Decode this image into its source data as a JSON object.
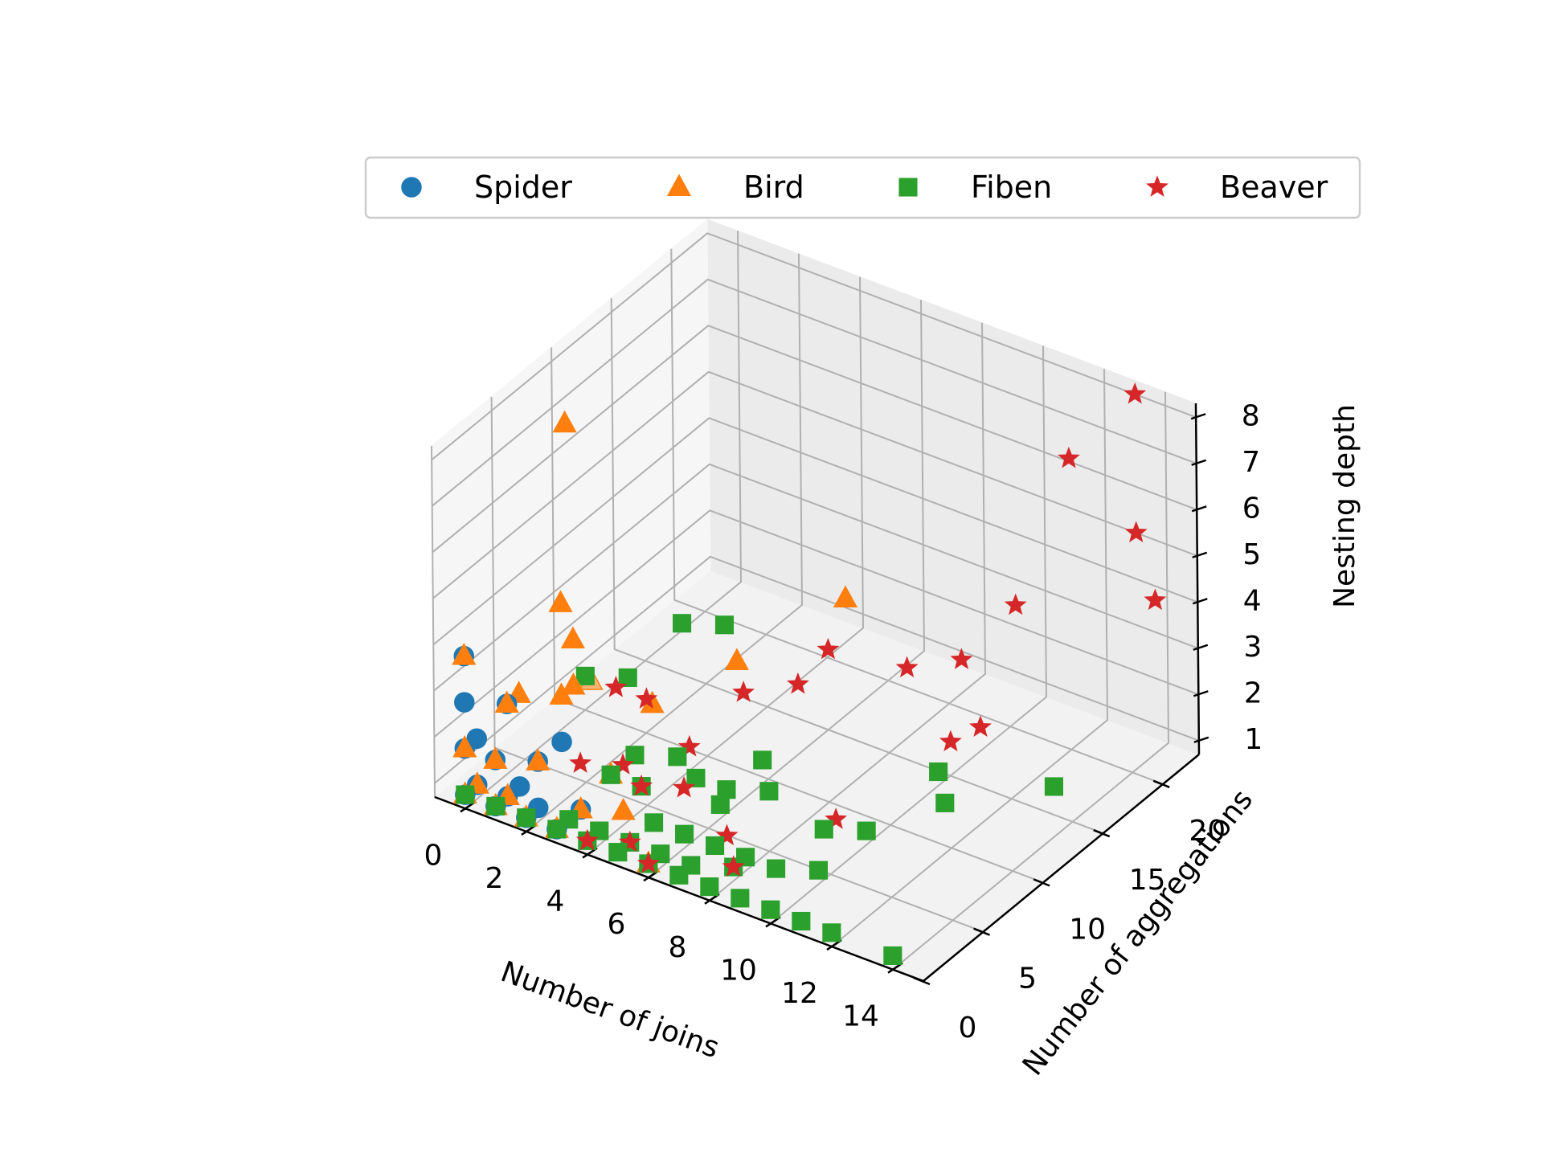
{
  "chart_data": {
    "type": "scatter3d",
    "title": "",
    "xlabel": "Number of joins",
    "ylabel": "Number of aggregations",
    "zlabel": "Nesting depth",
    "xlim": [
      -1,
      15
    ],
    "ylim": [
      0,
      23
    ],
    "zlim": [
      0.7,
      8.3
    ],
    "x_ticks": [
      "0",
      "2",
      "4",
      "6",
      "8",
      "10",
      "12",
      "14"
    ],
    "y_ticks": [
      "0",
      "5",
      "10",
      "15",
      "20"
    ],
    "z_ticks": [
      "1",
      "2",
      "3",
      "4",
      "5",
      "6",
      "7",
      "8"
    ],
    "legend": {
      "placement": "top",
      "columns": 4
    },
    "series": [
      {
        "name": "Spider",
        "marker": "circle",
        "color": "#1f77b4",
        "points": [
          [
            0,
            0,
            1
          ],
          [
            0,
            1,
            1
          ],
          [
            1,
            0,
            1
          ],
          [
            1,
            1,
            1
          ],
          [
            2,
            0,
            1
          ],
          [
            2,
            1,
            1
          ],
          [
            0,
            0,
            2
          ],
          [
            1,
            0,
            2
          ],
          [
            0,
            1,
            2
          ],
          [
            2,
            1,
            2
          ],
          [
            0,
            0,
            3
          ],
          [
            1,
            1,
            3
          ],
          [
            0,
            0,
            4
          ],
          [
            1,
            2,
            1
          ],
          [
            3,
            0,
            1
          ],
          [
            3,
            2,
            1
          ],
          [
            2,
            3,
            2
          ]
        ]
      },
      {
        "name": "Bird",
        "marker": "triangle",
        "color": "#ff7f0e",
        "points": [
          [
            0,
            0,
            1
          ],
          [
            1,
            0,
            1
          ],
          [
            0,
            1,
            1
          ],
          [
            2,
            0,
            1
          ],
          [
            1,
            1,
            1
          ],
          [
            3,
            0,
            1
          ],
          [
            0,
            0,
            2
          ],
          [
            1,
            0,
            2
          ],
          [
            2,
            1,
            2
          ],
          [
            1,
            1,
            3
          ],
          [
            0,
            0,
            4
          ],
          [
            2,
            3,
            3
          ],
          [
            2,
            4,
            4
          ],
          [
            2,
            3,
            5
          ],
          [
            1,
            6,
            8
          ],
          [
            1,
            8,
            2
          ],
          [
            3,
            8,
            2
          ],
          [
            4,
            3,
            1
          ],
          [
            1,
            2,
            3
          ],
          [
            5,
            10,
            3
          ],
          [
            4,
            2,
            2
          ],
          [
            2,
            4,
            3
          ],
          [
            3,
            2,
            1
          ],
          [
            6,
            0,
            1
          ],
          [
            7,
            14,
            4
          ]
        ]
      },
      {
        "name": "Fiben",
        "marker": "square",
        "color": "#2ca02c",
        "points": [
          [
            0,
            0,
            1
          ],
          [
            1,
            0,
            1
          ],
          [
            2,
            0,
            1
          ],
          [
            3,
            0,
            1
          ],
          [
            4,
            0,
            1
          ],
          [
            5,
            0,
            1
          ],
          [
            6,
            0,
            1
          ],
          [
            7,
            0,
            1
          ],
          [
            8,
            0,
            1
          ],
          [
            9,
            0,
            1
          ],
          [
            10,
            0,
            1
          ],
          [
            11,
            0,
            1
          ],
          [
            12,
            0,
            1
          ],
          [
            14,
            0,
            1
          ],
          [
            3,
            1,
            1
          ],
          [
            4,
            1,
            1
          ],
          [
            5,
            1,
            1
          ],
          [
            6,
            1,
            1
          ],
          [
            7,
            1,
            1
          ],
          [
            8,
            2,
            1
          ],
          [
            5,
            3,
            1
          ],
          [
            6,
            3,
            1
          ],
          [
            7,
            3,
            1
          ],
          [
            8,
            3,
            1
          ],
          [
            9,
            3,
            1
          ],
          [
            10,
            4,
            1
          ],
          [
            4,
            2,
            2
          ],
          [
            5,
            2,
            2
          ],
          [
            6,
            4,
            2
          ],
          [
            7,
            4,
            2
          ],
          [
            8,
            5,
            2
          ],
          [
            2,
            5,
            3
          ],
          [
            3,
            6,
            3
          ],
          [
            4,
            8,
            4
          ],
          [
            5,
            9,
            4
          ],
          [
            11,
            12,
            1
          ],
          [
            9,
            7,
            1
          ],
          [
            10,
            8,
            1
          ],
          [
            4,
            4,
            2
          ],
          [
            5,
            5,
            2
          ],
          [
            13,
            16,
            1
          ],
          [
            10,
            14,
            1
          ],
          [
            6,
            6,
            1
          ],
          [
            7,
            7,
            2
          ]
        ]
      },
      {
        "name": "Beaver",
        "marker": "star",
        "color": "#d62728",
        "points": [
          [
            4,
            0,
            1
          ],
          [
            5,
            1,
            1
          ],
          [
            6,
            0,
            1
          ],
          [
            8,
            2,
            1
          ],
          [
            7,
            4,
            1
          ],
          [
            3,
            2,
            2
          ],
          [
            4,
            3,
            2
          ],
          [
            5,
            2,
            2
          ],
          [
            6,
            3,
            2
          ],
          [
            3,
            5,
            3
          ],
          [
            4,
            5,
            3
          ],
          [
            6,
            8,
            3
          ],
          [
            7,
            10,
            3
          ],
          [
            9,
            14,
            3
          ],
          [
            10,
            16,
            3
          ],
          [
            11,
            15,
            2
          ],
          [
            12,
            10,
            3
          ],
          [
            8,
            10,
            4
          ],
          [
            11,
            18,
            4
          ],
          [
            14,
            22,
            4
          ],
          [
            13,
            23,
            5
          ],
          [
            12,
            20,
            7
          ],
          [
            13,
            23,
            8
          ],
          [
            5,
            6,
            2
          ],
          [
            9,
            8,
            1
          ]
        ]
      }
    ]
  }
}
